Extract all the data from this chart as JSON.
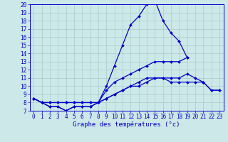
{
  "xlabel": "Graphe des températures (°c)",
  "xlim": [
    -0.5,
    23.5
  ],
  "ylim": [
    7,
    20
  ],
  "xticks": [
    0,
    1,
    2,
    3,
    4,
    5,
    6,
    7,
    8,
    9,
    10,
    11,
    12,
    13,
    14,
    15,
    16,
    17,
    18,
    19,
    20,
    21,
    22,
    23
  ],
  "yticks": [
    7,
    8,
    9,
    10,
    11,
    12,
    13,
    14,
    15,
    16,
    17,
    18,
    19,
    20
  ],
  "bg_color": "#cce8e8",
  "grid_color": "#aacccc",
  "line_color": "#0000cc",
  "series": [
    [
      8.5,
      8.0,
      7.5,
      7.5,
      7.0,
      7.5,
      7.5,
      7.5,
      8.0,
      10.0,
      12.5,
      15.0,
      17.5,
      18.5,
      20.0,
      20.5,
      18.0,
      16.5,
      15.5,
      13.5,
      null,
      null,
      null,
      null
    ],
    [
      8.5,
      8.0,
      7.5,
      7.5,
      7.0,
      7.5,
      7.5,
      7.5,
      8.0,
      9.5,
      10.5,
      11.0,
      11.5,
      12.0,
      12.5,
      13.0,
      13.0,
      13.0,
      13.0,
      13.5,
      null,
      null,
      null,
      null
    ],
    [
      8.5,
      8.0,
      8.0,
      8.0,
      8.0,
      8.0,
      8.0,
      8.0,
      8.0,
      8.5,
      9.0,
      9.5,
      10.0,
      10.5,
      11.0,
      11.0,
      11.0,
      11.0,
      11.0,
      11.5,
      11.0,
      10.5,
      9.5,
      9.5
    ],
    [
      8.5,
      8.0,
      8.0,
      8.0,
      8.0,
      8.0,
      8.0,
      8.0,
      8.0,
      8.5,
      9.0,
      9.5,
      10.0,
      10.0,
      10.5,
      11.0,
      11.0,
      10.5,
      10.5,
      10.5,
      10.5,
      10.5,
      9.5,
      9.5
    ]
  ],
  "tick_fontsize": 5.5,
  "label_fontsize": 6.5,
  "lw": 0.9,
  "ms": 2.0
}
